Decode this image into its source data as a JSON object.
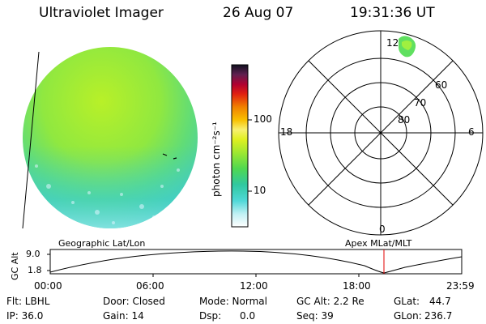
{
  "header": {
    "instrument": "Ultraviolet Imager",
    "date": "26 Aug 07",
    "time": "19:31:36 UT"
  },
  "colorbar": {
    "unit_label": "photon cm⁻²s⁻¹",
    "ticks": [
      "100",
      "10"
    ],
    "scale": "log",
    "colors": [
      "#e8f8ff",
      "#80e0e8",
      "#30c8d0",
      "#40d880",
      "#a0f030",
      "#f0f020",
      "#f8a000",
      "#e82010",
      "#b00040",
      "#400050",
      "#101020"
    ]
  },
  "polar_plot": {
    "mlt_labels": {
      "top": "12",
      "left": "18",
      "right": "6",
      "bottom": "0"
    },
    "lat_labels": [
      "60",
      "70",
      "80"
    ]
  },
  "strip": {
    "left_title": "Geographic Lat/Lon",
    "right_title": "Apex  MLat/MLT",
    "ylabel": "GC Alt",
    "y_ticks": [
      "9.0",
      "1.8"
    ],
    "x_ticks": [
      "00:00",
      "06:00",
      "12:00",
      "18:00",
      "23:59"
    ]
  },
  "status": {
    "row1": {
      "flt": "Flt: LBHL",
      "door": "Door: Closed",
      "mode": "Mode: Normal",
      "gc_alt": "GC Alt: 2.2 Re",
      "glat_label": "GLat:",
      "glat_value": "44.7"
    },
    "row2": {
      "ip": "IP: 36.0",
      "gain": "Gain: 14",
      "dsp_label": "Dsp:",
      "dsp_value": "0.0",
      "seq": "Seq: 39",
      "glon_label": "GLon:",
      "glon_value": "236.7"
    }
  }
}
